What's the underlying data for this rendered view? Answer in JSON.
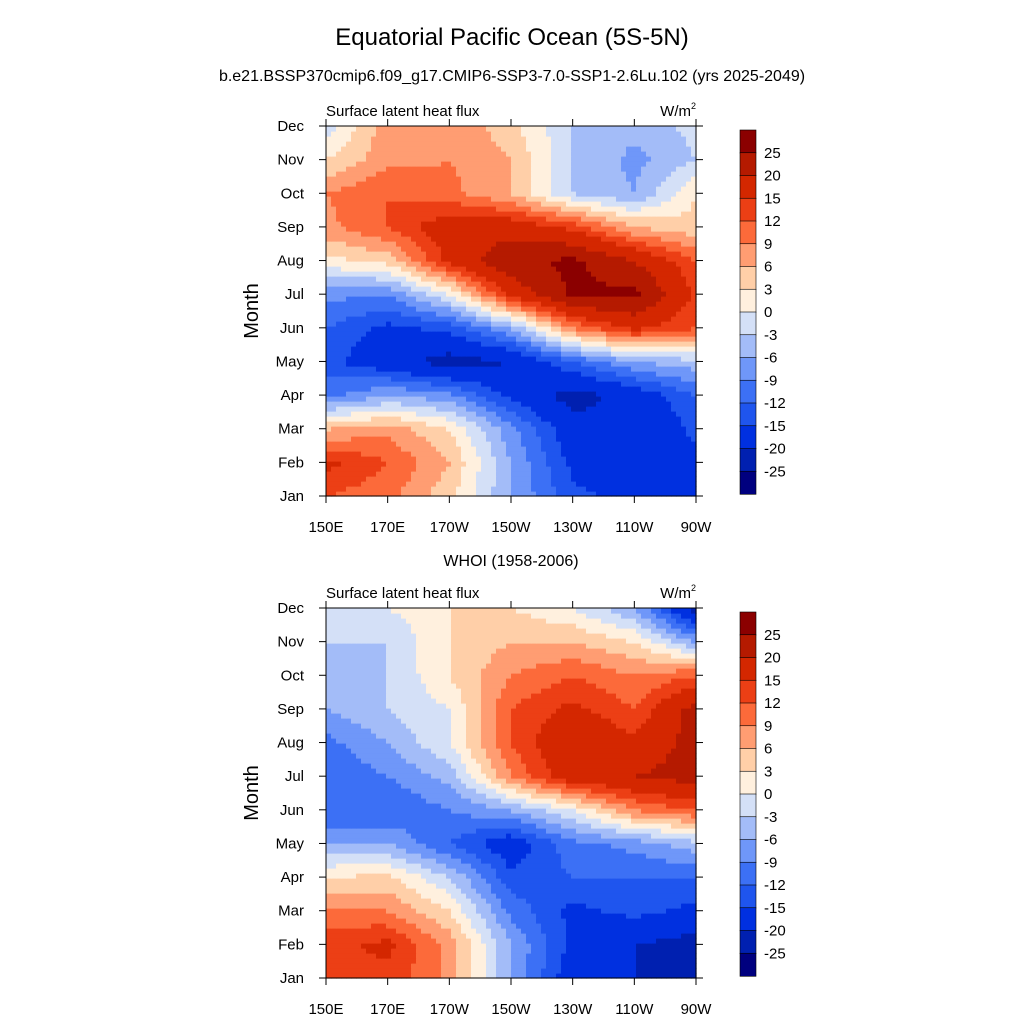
{
  "title": "Equatorial Pacific Ocean (5S-5N)",
  "subtitle": "b.e21.BSSP370cmip6.f09_g17.CMIP6-SSP3-7.0-SSP1-2.6Lu.102 (yrs 2025-2049)",
  "chart_data": [
    {
      "type": "heatmap",
      "panel_title": "",
      "left_label": "Surface latent heat flux",
      "right_label": "W/m",
      "right_label_sup": "2",
      "ylabel": "Month",
      "xlabel": "",
      "x_ticks": [
        "150E",
        "170E",
        "170W",
        "150W",
        "130W",
        "110W",
        "90W"
      ],
      "y_ticks": [
        "Jan",
        "Feb",
        "Mar",
        "Apr",
        "May",
        "Jun",
        "Jul",
        "Aug",
        "Sep",
        "Oct",
        "Nov",
        "Dec"
      ],
      "xlim_deg_east": [
        150,
        270
      ],
      "x_deg_east": [
        150,
        170,
        190,
        210,
        230,
        250,
        270
      ],
      "values": [
        [
          12,
          10,
          4,
          -6,
          -14,
          -16,
          -15
        ],
        [
          16,
          12,
          6,
          -6,
          -16,
          -20,
          -16
        ],
        [
          6,
          8,
          3,
          -8,
          -18,
          -20,
          -14
        ],
        [
          -10,
          -6,
          -8,
          -16,
          -22,
          -18,
          -12
        ],
        [
          -14,
          -18,
          -22,
          -20,
          -12,
          -6,
          -4
        ],
        [
          -12,
          -16,
          -14,
          -6,
          9,
          16,
          12
        ],
        [
          -8,
          -9,
          0,
          16,
          26,
          26,
          14
        ],
        [
          2,
          4,
          16,
          24,
          26,
          20,
          12
        ],
        [
          8,
          12,
          18,
          18,
          14,
          6,
          4
        ],
        [
          9,
          12,
          10,
          6,
          -3,
          -6,
          3
        ],
        [
          3,
          8,
          9,
          6,
          -3,
          -7,
          -3
        ],
        [
          -2,
          8,
          9,
          4,
          -3,
          -5,
          -2
        ]
      ]
    },
    {
      "type": "heatmap",
      "panel_title": "WHOI (1958-2006)",
      "left_label": "Surface latent heat flux",
      "right_label": "W/m",
      "right_label_sup": "2",
      "ylabel": "Month",
      "xlabel": "",
      "x_ticks": [
        "150E",
        "170E",
        "170W",
        "150W",
        "130W",
        "110W",
        "90W"
      ],
      "y_ticks": [
        "Jan",
        "Feb",
        "Mar",
        "Apr",
        "May",
        "Jun",
        "Jul",
        "Aug",
        "Sep",
        "Oct",
        "Nov",
        "Dec"
      ],
      "xlim_deg_east": [
        150,
        270
      ],
      "x_deg_east": [
        150,
        170,
        190,
        210,
        230,
        250,
        270
      ],
      "values": [
        [
          12,
          14,
          8,
          -6,
          -18,
          -20,
          -24
        ],
        [
          14,
          16,
          8,
          -6,
          -16,
          -20,
          -22
        ],
        [
          10,
          9,
          3,
          -10,
          -16,
          -14,
          -16
        ],
        [
          3,
          4,
          -3,
          -14,
          -12,
          -12,
          -12
        ],
        [
          -6,
          -6,
          -12,
          -18,
          -10,
          -8,
          -4
        ],
        [
          -12,
          -12,
          -9,
          -6,
          0,
          9,
          12
        ],
        [
          -12,
          -9,
          -5,
          9,
          18,
          20,
          22
        ],
        [
          -10,
          -6,
          0,
          12,
          20,
          16,
          22
        ],
        [
          -6,
          -3,
          0,
          12,
          16,
          12,
          22
        ],
        [
          -4,
          -3,
          3,
          9,
          12,
          9,
          12
        ],
        [
          -3,
          -3,
          3,
          6,
          6,
          3,
          -6
        ],
        [
          -2,
          0,
          3,
          3,
          0,
          -6,
          -22
        ]
      ]
    }
  ],
  "colorbar": {
    "labels": [
      "25",
      "20",
      "15",
      "12",
      "9",
      "6",
      "3",
      "0",
      "-3",
      "-6",
      "-9",
      "-12",
      "-15",
      "-20",
      "-25"
    ],
    "thresholds": [
      -25,
      -20,
      -15,
      -12,
      -9,
      -6,
      -3,
      0,
      3,
      6,
      9,
      12,
      15,
      20,
      25
    ],
    "colors": [
      "#00007f",
      "#0020b0",
      "#0030e0",
      "#1f55ee",
      "#3c70f5",
      "#6f97f9",
      "#a3bcf8",
      "#d4e0f7",
      "#fff0de",
      "#ffcfa8",
      "#ff9d72",
      "#fc6a3a",
      "#ec3f15",
      "#d42700",
      "#b51a00",
      "#8b0000"
    ]
  }
}
